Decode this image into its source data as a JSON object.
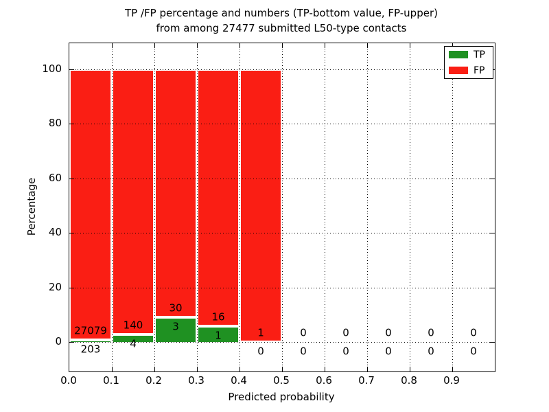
{
  "title": {
    "line1": "TP /FP percentage and numbers (TP-bottom value, FP-upper)",
    "line2": "from among 27477 submitted L50-type contacts"
  },
  "axes": {
    "xlabel": "Predicted probability",
    "ylabel": "Percentage"
  },
  "legend": {
    "items": [
      {
        "label": "TP",
        "color": "#1f9122"
      },
      {
        "label": "FP",
        "color": "#fa1e14"
      }
    ],
    "position": "upper right"
  },
  "chart_data": {
    "type": "bar",
    "stacked": true,
    "units": "percent",
    "title": "TP /FP percentage and numbers (TP-bottom value, FP-upper) from among 27477 submitted L50-type contacts",
    "total_submitted": 27477,
    "xlabel": "Predicted probability",
    "ylabel": "Percentage",
    "bin_width": 0.1,
    "categories": [
      "0.0-0.1",
      "0.1-0.2",
      "0.2-0.3",
      "0.3-0.4",
      "0.4-0.5",
      "0.5-0.6",
      "0.6-0.7",
      "0.7-0.8",
      "0.8-0.9",
      "0.9-1.0"
    ],
    "series": [
      {
        "name": "TP",
        "color": "#1f9122",
        "counts": [
          203,
          4,
          3,
          1,
          0,
          0,
          0,
          0,
          0,
          0
        ]
      },
      {
        "name": "FP",
        "color": "#fa1e14",
        "counts": [
          27079,
          140,
          30,
          16,
          1,
          0,
          0,
          0,
          0,
          0
        ]
      }
    ],
    "percent_tp": [
      0.74,
      2.78,
      9.09,
      5.88,
      0,
      0,
      0,
      0,
      0,
      0
    ],
    "percent_fp": [
      99.26,
      97.22,
      90.91,
      94.12,
      100,
      0,
      0,
      0,
      0,
      0
    ],
    "xticks": [
      "0.0",
      "0.1",
      "0.2",
      "0.3",
      "0.4",
      "0.5",
      "0.6",
      "0.7",
      "0.8",
      "0.9"
    ],
    "yticks": [
      0,
      20,
      40,
      60,
      80,
      100
    ],
    "xlim": [
      0.0,
      1.0
    ],
    "ylim": [
      -11,
      110
    ],
    "grid": "dotted",
    "legend_position": "upper right",
    "bar_edge_color": "#ffffff"
  }
}
